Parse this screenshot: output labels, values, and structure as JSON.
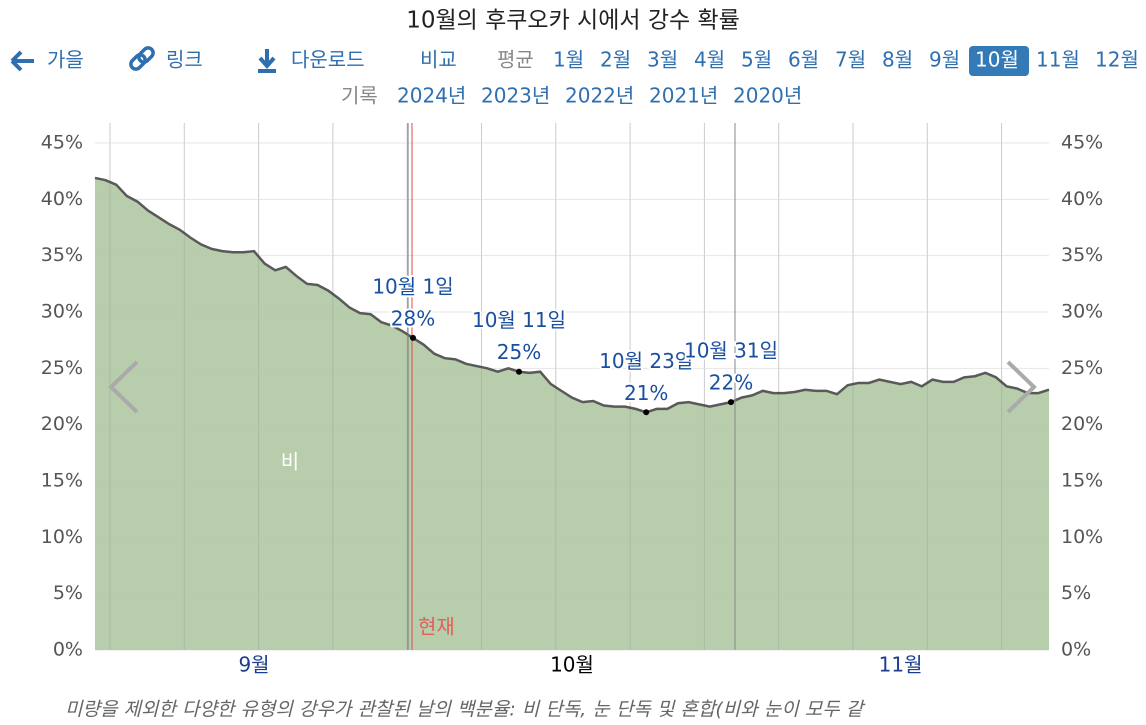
{
  "header": {
    "title": "10월의 후쿠오카 시에서 강수 확률",
    "nav": {
      "prev": "가을",
      "link": "링크",
      "download": "다운로드",
      "compare": "비교",
      "average": "평균"
    },
    "months": [
      {
        "label": "1월"
      },
      {
        "label": "2월"
      },
      {
        "label": "3월"
      },
      {
        "label": "4월"
      },
      {
        "label": "5월"
      },
      {
        "label": "6월"
      },
      {
        "label": "7월"
      },
      {
        "label": "8월"
      },
      {
        "label": "9월"
      },
      {
        "label": "10월",
        "selected": true
      },
      {
        "label": "11월"
      },
      {
        "label": "12월"
      }
    ],
    "history_label": "기록",
    "years": [
      "2024년",
      "2023년",
      "2022년",
      "2021년",
      "2020년"
    ]
  },
  "chart_data": {
    "type": "area",
    "categories": [
      null,
      null,
      null,
      null,
      null,
      null,
      null,
      null,
      null,
      null,
      null,
      null,
      null,
      null,
      null,
      "9월",
      null,
      null,
      null,
      null,
      null,
      null,
      null,
      null,
      null,
      null,
      null,
      null,
      null,
      null,
      null,
      null,
      null,
      null,
      null,
      null,
      null,
      null,
      null,
      null,
      null,
      null,
      null,
      null,
      null,
      "10월",
      null,
      null,
      null,
      null,
      null,
      null,
      null,
      null,
      null,
      null,
      null,
      null,
      null,
      null,
      null,
      null,
      null,
      null,
      null,
      null,
      null,
      null,
      null,
      null,
      null,
      null,
      null,
      null,
      null,
      null,
      "11월",
      null,
      null,
      null,
      null,
      null,
      null,
      null,
      null,
      null,
      null,
      null,
      null,
      null,
      null
    ],
    "series": [
      {
        "name": "비",
        "color": "#b3caa8",
        "values": [
          41.9,
          41.7,
          41.3,
          40.3,
          39.8,
          39.0,
          38.4,
          37.8,
          37.3,
          36.6,
          36.0,
          35.6,
          35.4,
          35.3,
          35.3,
          35.4,
          34.3,
          33.7,
          34.0,
          33.2,
          32.5,
          32.4,
          31.9,
          31.2,
          30.4,
          29.9,
          29.8,
          29.1,
          28.8,
          28.3,
          27.7,
          27.1,
          26.3,
          25.9,
          25.8,
          25.4,
          25.2,
          25.0,
          24.7,
          25.0,
          24.7,
          24.6,
          24.7,
          23.6,
          23.0,
          22.4,
          22.0,
          22.1,
          21.7,
          21.6,
          21.6,
          21.4,
          21.1,
          21.4,
          21.4,
          21.9,
          22.0,
          21.8,
          21.6,
          21.8,
          22.0,
          22.4,
          22.6,
          23.0,
          22.8,
          22.8,
          22.9,
          23.1,
          23.0,
          23.0,
          22.7,
          23.5,
          23.7,
          23.7,
          24.0,
          23.8,
          23.6,
          23.8,
          23.4,
          24.0,
          23.8,
          23.8,
          24.2,
          24.3,
          24.6,
          24.2,
          23.4,
          23.2,
          22.8,
          22.8,
          23.1
        ],
        "date_labels": [
          null,
          null,
          null,
          null,
          null,
          null,
          null,
          null,
          null,
          null,
          null,
          null,
          null,
          null,
          null,
          null,
          null,
          null,
          null,
          null,
          null,
          null,
          null,
          null,
          null,
          null,
          null,
          null,
          null,
          null,
          "10월 1일",
          null,
          null,
          null,
          null,
          null,
          null,
          null,
          null,
          null,
          "10월 11일",
          null,
          null,
          null,
          null,
          null,
          null,
          null,
          null,
          null,
          null,
          null,
          "10월 23일",
          null,
          null,
          null,
          null,
          null,
          null,
          null,
          "10월 31일",
          null,
          null,
          null,
          null,
          null,
          null,
          null,
          null,
          null,
          null,
          null,
          null,
          null,
          null,
          null,
          null,
          null,
          null,
          null,
          null,
          null,
          null,
          null,
          null,
          null,
          null,
          null,
          null,
          null,
          null
        ],
        "value_labels": [
          null,
          null,
          null,
          null,
          null,
          null,
          null,
          null,
          null,
          null,
          null,
          null,
          null,
          null,
          null,
          null,
          null,
          null,
          null,
          null,
          null,
          null,
          null,
          null,
          null,
          null,
          null,
          null,
          null,
          null,
          "28%",
          null,
          null,
          null,
          null,
          null,
          null,
          null,
          null,
          null,
          "25%",
          null,
          null,
          null,
          null,
          null,
          null,
          null,
          null,
          null,
          null,
          null,
          "21%",
          null,
          null,
          null,
          null,
          null,
          null,
          null,
          "22%",
          null,
          null,
          null,
          null,
          null,
          null,
          null,
          null,
          null,
          null,
          null,
          null,
          null,
          null,
          null,
          null,
          null,
          null,
          null,
          null,
          null,
          null,
          null,
          null,
          null,
          null,
          null,
          null,
          null,
          null
        ]
      }
    ],
    "line_color": "#595959",
    "ylim": [
      0,
      45
    ],
    "yticks": [
      {
        "value": 0,
        "label": "0%"
      },
      {
        "value": 5,
        "label": "5%"
      },
      {
        "value": 10,
        "label": "10%"
      },
      {
        "value": 15,
        "label": "15%"
      },
      {
        "value": 20,
        "label": "20%"
      },
      {
        "value": 25,
        "label": "25%"
      },
      {
        "value": 30,
        "label": "30%"
      },
      {
        "value": 35,
        "label": "35%"
      },
      {
        "value": 40,
        "label": "40%"
      },
      {
        "value": 45,
        "label": "45%"
      }
    ],
    "grid": true,
    "now_label": "현재"
  },
  "footnote": "미량을 제외한 다양한 유형의 강우가 관찰된 날의 백분율: 비 단독, 눈 단독 및 혼합(비와 눈이 모두 같"
}
